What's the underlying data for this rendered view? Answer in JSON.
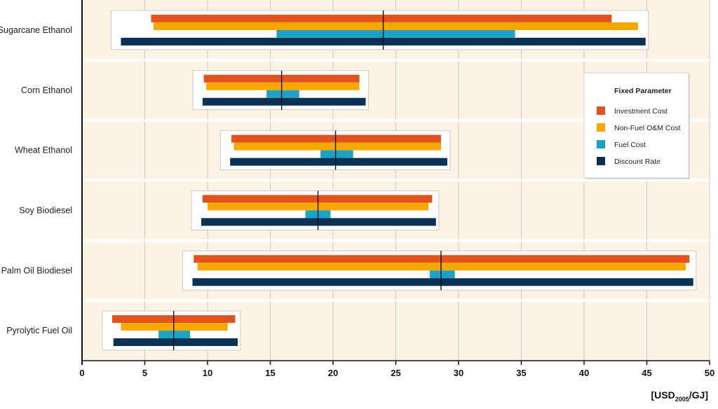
{
  "chart_data": {
    "type": "bar",
    "orientation": "horizontal",
    "subtype": "sensitivity-range",
    "xlim": [
      0,
      50
    ],
    "xticks": [
      0,
      5,
      10,
      15,
      20,
      25,
      30,
      35,
      40,
      45,
      50
    ],
    "xlabel": {
      "prefix": "[USD",
      "subscript": "2005",
      "suffix": "/GJ]"
    },
    "grid": true,
    "legend": {
      "title": "Fixed Parameter",
      "placement": "right",
      "entries": [
        {
          "key": "investment",
          "label": "Investment Cost",
          "color": "#E2521D"
        },
        {
          "key": "om",
          "label": "Non-Fuel O&M Cost",
          "color": "#F6A800"
        },
        {
          "key": "fuel",
          "label": "Fuel Cost",
          "color": "#1BA3C6"
        },
        {
          "key": "discount",
          "label": "Discount Rate",
          "color": "#0B3157"
        }
      ]
    },
    "categories": [
      {
        "name": "Sugarcane Ethanol",
        "median": 24.0,
        "investment": [
          5.5,
          42.2
        ],
        "om": [
          5.7,
          44.3
        ],
        "fuel": [
          15.5,
          34.5
        ],
        "discount": [
          3.1,
          44.9
        ]
      },
      {
        "name": "Corn Ethanol",
        "median": 15.9,
        "investment": [
          9.7,
          22.1
        ],
        "om": [
          9.9,
          22.1
        ],
        "fuel": [
          14.7,
          17.3
        ],
        "discount": [
          9.6,
          22.6
        ]
      },
      {
        "name": "Wheat Ethanol",
        "median": 20.2,
        "investment": [
          11.9,
          28.6
        ],
        "om": [
          12.1,
          28.6
        ],
        "fuel": [
          19.0,
          21.6
        ],
        "discount": [
          11.8,
          29.1
        ]
      },
      {
        "name": "Soy Biodiesel",
        "median": 18.8,
        "investment": [
          9.6,
          27.9
        ],
        "om": [
          10.0,
          27.6
        ],
        "fuel": [
          17.8,
          19.8
        ],
        "discount": [
          9.5,
          28.2
        ]
      },
      {
        "name": "Palm Oil Biodiesel",
        "median": 28.6,
        "investment": [
          8.9,
          48.4
        ],
        "om": [
          9.2,
          48.1
        ],
        "fuel": [
          27.7,
          29.7
        ],
        "discount": [
          8.8,
          48.7
        ]
      },
      {
        "name": "Pyrolytic Fuel Oil",
        "median": 7.3,
        "investment": [
          2.4,
          12.2
        ],
        "om": [
          3.1,
          11.6
        ],
        "fuel": [
          6.1,
          8.6
        ],
        "discount": [
          2.5,
          12.4
        ]
      }
    ]
  },
  "colors": {
    "plot_background": "#FDF3E4",
    "grid": "#C8C8C8",
    "panel_background": "#FFFFFF",
    "median_line": "#111111"
  }
}
